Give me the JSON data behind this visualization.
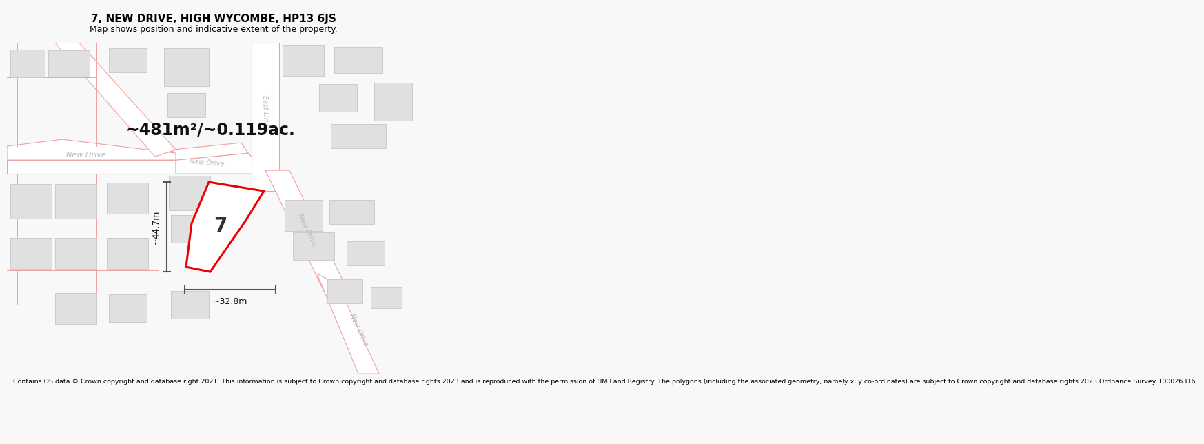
{
  "title": "7, NEW DRIVE, HIGH WYCOMBE, HP13 6JS",
  "subtitle": "Map shows position and indicative extent of the property.",
  "footer": "Contains OS data © Crown copyright and database right 2021. This information is subject to Crown copyright and database rights 2023 and is reproduced with the permission of HM Land Registry. The polygons (including the associated geometry, namely x, y co-ordinates) are subject to Crown copyright and database rights 2023 Ordnance Survey 100026316.",
  "area_label": "~481m²/~0.119ac.",
  "height_label": "~44.7m",
  "width_label": "~32.8m",
  "plot_number": "7",
  "bg_color": "#f8f8f8",
  "map_bg": "#ffffff",
  "road_color": "#f0a0a0",
  "road_fill": "#ffffff",
  "building_fill": "#e0e0e0",
  "building_edge": "#cccccc",
  "highlight_color": "#ee0000",
  "highlight_fill": "#ffffff",
  "road_label_color": "#bbbbbb",
  "dim_line_color": "#555555",
  "title_fontsize": 11,
  "subtitle_fontsize": 9,
  "footer_fontsize": 6.8,
  "area_fontsize": 17
}
